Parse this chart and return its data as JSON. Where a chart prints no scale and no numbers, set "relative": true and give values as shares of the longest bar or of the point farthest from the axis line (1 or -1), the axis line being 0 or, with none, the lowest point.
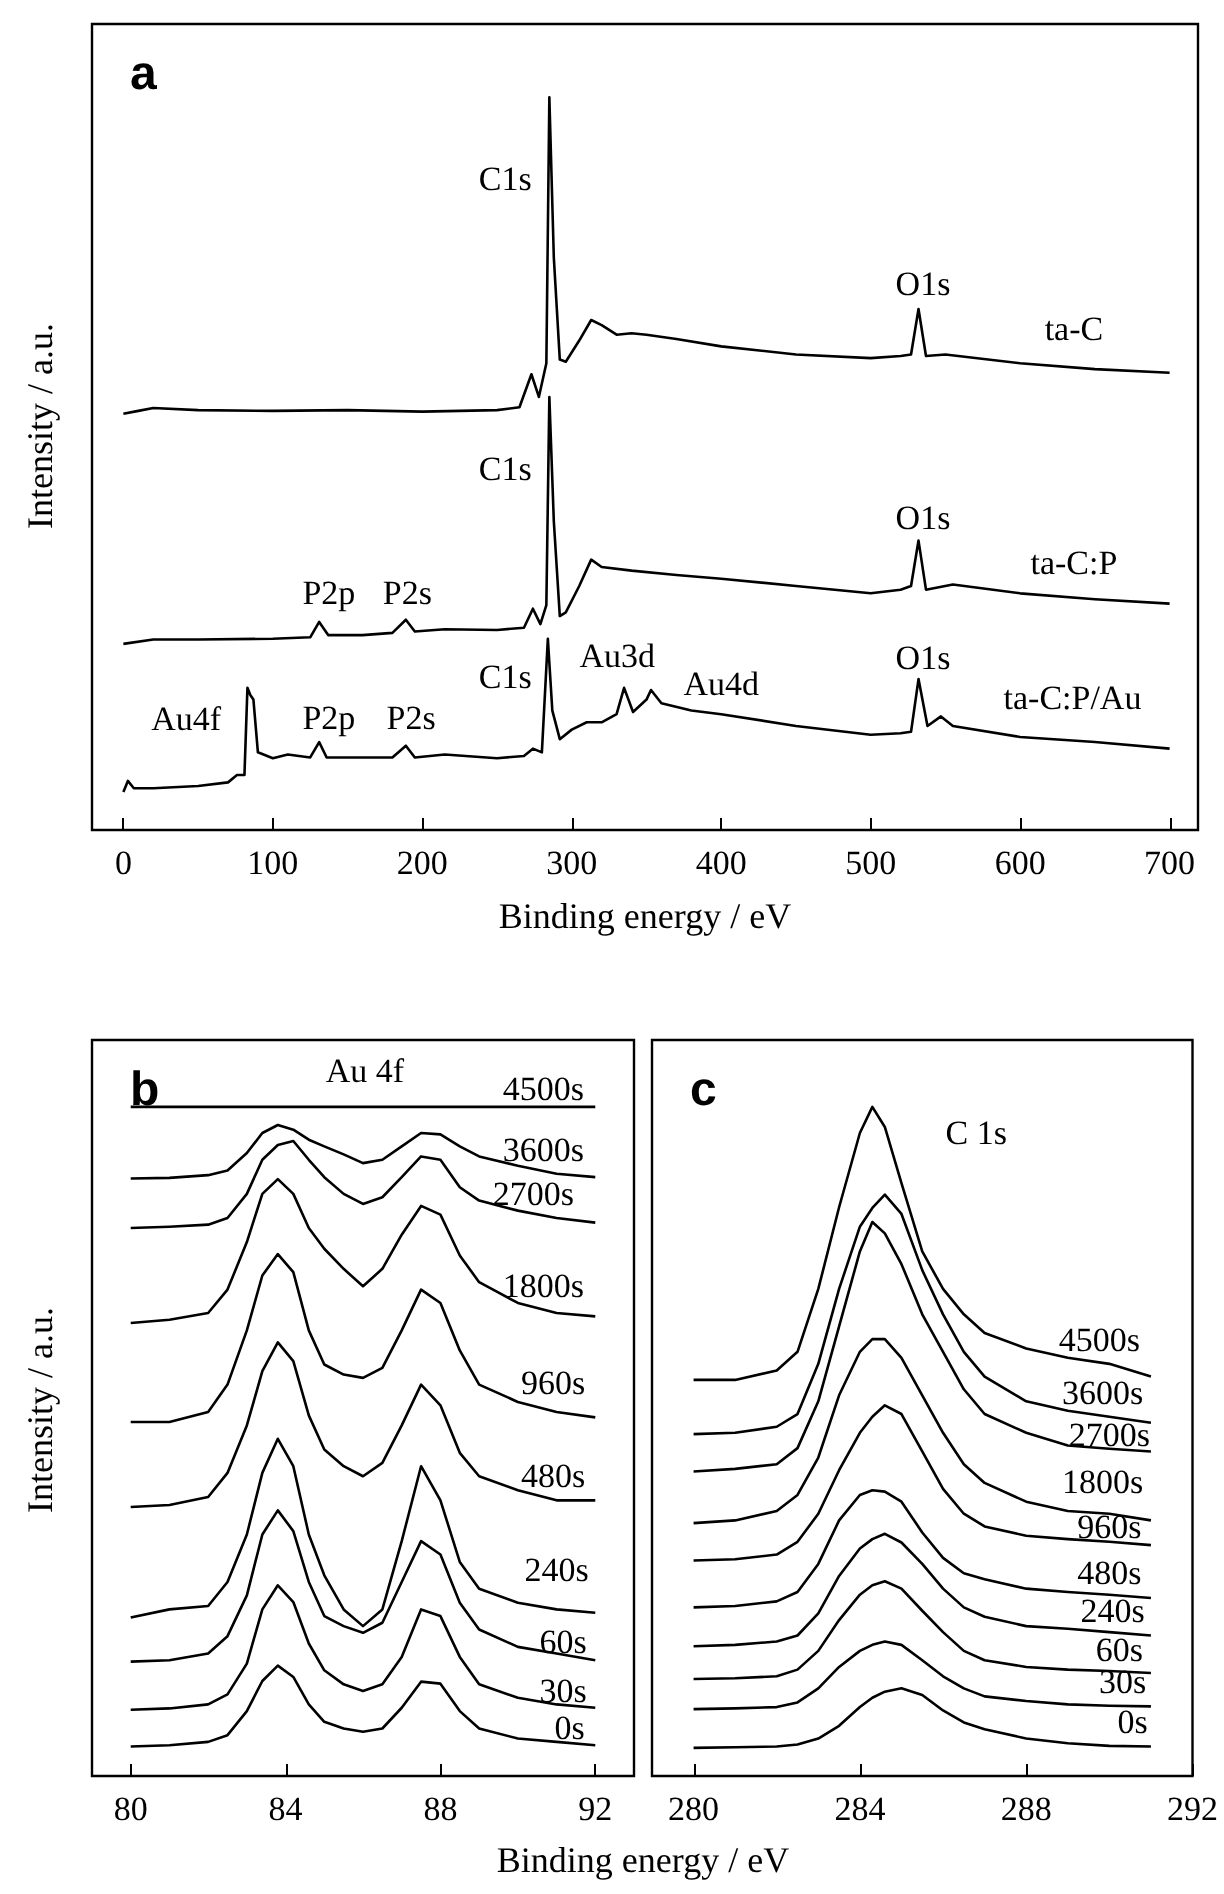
{
  "chart_data": [
    {
      "type": "line",
      "title": "a",
      "xlabel": "Binding energy / eV",
      "ylabel": "Intensity / a.u.",
      "relative": true,
      "marker": "none",
      "line_style": "solid",
      "xlim": [
        -21,
        719
      ],
      "xticks": [
        0,
        100,
        200,
        300,
        400,
        500,
        600,
        700
      ],
      "series": [
        {
          "color": "#000000",
          "x": [
            0,
            10,
            20,
            50,
            100,
            150,
            200,
            250,
            265,
            273,
            278,
            283,
            285,
            288,
            292,
            296,
            305,
            313,
            320,
            330,
            340,
            350,
            370,
            400,
            450,
            500,
            520,
            527,
            532,
            537,
            550,
            600,
            650,
            700
          ],
          "values": [
            0.568,
            0.572,
            0.576,
            0.573,
            0.572,
            0.573,
            0.571,
            0.573,
            0.577,
            0.622,
            0.591,
            0.637,
            1.0,
            0.781,
            0.642,
            0.639,
            0.668,
            0.696,
            0.689,
            0.676,
            0.678,
            0.676,
            0.67,
            0.66,
            0.649,
            0.644,
            0.647,
            0.649,
            0.711,
            0.647,
            0.649,
            0.637,
            0.629,
            0.624
          ]
        },
        {
          "color": "#000000",
          "x": [
            0,
            20,
            50,
            100,
            125,
            131,
            137,
            160,
            180,
            189,
            195,
            215,
            250,
            268,
            274,
            279,
            283,
            285,
            288,
            292,
            296,
            305,
            313,
            320,
            340,
            370,
            400,
            450,
            500,
            520,
            527,
            532,
            537,
            555,
            600,
            650,
            700
          ],
          "values": [
            0.254,
            0.26,
            0.26,
            0.261,
            0.263,
            0.284,
            0.266,
            0.266,
            0.269,
            0.287,
            0.271,
            0.274,
            0.273,
            0.276,
            0.302,
            0.281,
            0.307,
            0.591,
            0.421,
            0.292,
            0.297,
            0.333,
            0.369,
            0.359,
            0.354,
            0.348,
            0.343,
            0.333,
            0.323,
            0.328,
            0.333,
            0.395,
            0.328,
            0.335,
            0.323,
            0.315,
            0.309
          ]
        },
        {
          "color": "#000000",
          "x": [
            0,
            3,
            7,
            20,
            50,
            70,
            76,
            81,
            83,
            85,
            87,
            90,
            100,
            110,
            125,
            131,
            136,
            160,
            180,
            189,
            195,
            215,
            250,
            268,
            274,
            280,
            284,
            287,
            292,
            300,
            310,
            320,
            330,
            335,
            341,
            350,
            353,
            360,
            380,
            400,
            450,
            500,
            520,
            527,
            532,
            538,
            547,
            555,
            600,
            650,
            700
          ],
          "values": [
            0.052,
            0.067,
            0.057,
            0.057,
            0.06,
            0.065,
            0.075,
            0.075,
            0.194,
            0.184,
            0.178,
            0.106,
            0.098,
            0.103,
            0.099,
            0.12,
            0.099,
            0.099,
            0.099,
            0.115,
            0.099,
            0.103,
            0.098,
            0.101,
            0.111,
            0.106,
            0.261,
            0.163,
            0.124,
            0.137,
            0.147,
            0.147,
            0.158,
            0.194,
            0.161,
            0.178,
            0.191,
            0.173,
            0.163,
            0.158,
            0.142,
            0.13,
            0.132,
            0.134,
            0.206,
            0.142,
            0.155,
            0.142,
            0.127,
            0.12,
            0.111
          ]
        }
      ],
      "annotations": [
        "C1s",
        "O1s",
        "ta-C",
        "C1s",
        "O1s",
        "ta-C:P",
        "P2p",
        "P2s",
        "C1s",
        "Au3d",
        "Au4d",
        "O1s",
        "ta-C:P/Au",
        "Au4f",
        "P2p",
        "P2s"
      ]
    },
    {
      "type": "line",
      "title": "b",
      "xlabel": "Binding energy / eV",
      "ylabel": "Intensity / a.u.",
      "relative": true,
      "marker": "none",
      "line_style": "solid",
      "xlim": [
        79,
        93
      ],
      "xticks": [
        80,
        84,
        88,
        92
      ],
      "x": [
        80,
        81,
        82,
        82.5,
        83,
        83.4,
        83.8,
        84.2,
        84.6,
        85,
        85.5,
        86,
        86.5,
        87,
        87.5,
        88,
        88.5,
        89,
        90,
        91,
        92
      ],
      "series": [
        {
          "color": "#000000",
          "values": [
            0.044,
            0.046,
            0.051,
            0.061,
            0.097,
            0.142,
            0.165,
            0.148,
            0.107,
            0.081,
            0.071,
            0.066,
            0.071,
            0.102,
            0.141,
            0.138,
            0.097,
            0.071,
            0.056,
            0.051,
            0.046
          ]
        },
        {
          "color": "#000000",
          "values": [
            0.099,
            0.101,
            0.107,
            0.122,
            0.168,
            0.249,
            0.285,
            0.26,
            0.198,
            0.158,
            0.137,
            0.127,
            0.137,
            0.178,
            0.249,
            0.239,
            0.178,
            0.137,
            0.117,
            0.107,
            0.102
          ]
        },
        {
          "color": "#000000",
          "values": [
            0.171,
            0.173,
            0.183,
            0.209,
            0.27,
            0.361,
            0.397,
            0.366,
            0.29,
            0.239,
            0.224,
            0.214,
            0.229,
            0.29,
            0.351,
            0.331,
            0.259,
            0.219,
            0.193,
            0.183,
            0.173
          ]
        },
        {
          "color": "#000000",
          "values": [
            0.237,
            0.249,
            0.254,
            0.29,
            0.361,
            0.453,
            0.504,
            0.463,
            0.361,
            0.3,
            0.249,
            0.224,
            0.249,
            0.351,
            0.463,
            0.412,
            0.32,
            0.28,
            0.259,
            0.249,
            0.244
          ]
        },
        {
          "color": "#000000",
          "values": [
            0.402,
            0.405,
            0.417,
            0.453,
            0.524,
            0.605,
            0.648,
            0.62,
            0.539,
            0.488,
            0.463,
            0.448,
            0.468,
            0.524,
            0.585,
            0.554,
            0.483,
            0.448,
            0.427,
            0.412,
            0.412
          ]
        },
        {
          "color": "#000000",
          "values": [
            0.529,
            0.529,
            0.544,
            0.585,
            0.666,
            0.748,
            0.78,
            0.753,
            0.666,
            0.615,
            0.6,
            0.595,
            0.61,
            0.666,
            0.727,
            0.707,
            0.636,
            0.585,
            0.559,
            0.544,
            0.536
          ]
        },
        {
          "color": "#000000",
          "values": [
            0.677,
            0.682,
            0.692,
            0.727,
            0.798,
            0.87,
            0.892,
            0.87,
            0.819,
            0.788,
            0.758,
            0.732,
            0.758,
            0.809,
            0.852,
            0.839,
            0.778,
            0.738,
            0.707,
            0.692,
            0.687
          ]
        },
        {
          "color": "#000000",
          "values": [
            0.819,
            0.821,
            0.824,
            0.834,
            0.87,
            0.921,
            0.943,
            0.949,
            0.921,
            0.895,
            0.87,
            0.855,
            0.865,
            0.895,
            0.926,
            0.921,
            0.88,
            0.86,
            0.845,
            0.834,
            0.827
          ]
        },
        {
          "color": "#000000",
          "values": [
            0.893,
            0.894,
            0.898,
            0.905,
            0.931,
            0.961,
            0.973,
            0.966,
            0.951,
            0.941,
            0.929,
            0.916,
            0.921,
            0.941,
            0.961,
            0.959,
            0.941,
            0.926,
            0.912,
            0.9,
            0.895
          ]
        },
        {
          "color": "#000000",
          "values": [
            1,
            1,
            1,
            1,
            1,
            1,
            1,
            1,
            1,
            1,
            1,
            1,
            1,
            1,
            1,
            1,
            1,
            1,
            1,
            1,
            1
          ]
        }
      ],
      "annotations": [
        "Au 4f",
        "4500s",
        "3600s",
        "2700s",
        "1800s",
        "960s",
        "480s",
        "240s",
        "60s",
        "30s",
        "0s"
      ]
    },
    {
      "type": "line",
      "title": "c",
      "relative": true,
      "marker": "none",
      "line_style": "solid",
      "xlim": [
        279,
        292
      ],
      "xticks": [
        280,
        284,
        288,
        292
      ],
      "x": [
        280,
        281,
        282,
        282.5,
        283,
        283.5,
        284,
        284.3,
        284.6,
        285,
        285.5,
        286,
        286.5,
        287,
        288,
        289,
        290,
        291
      ],
      "series": [
        {
          "color": "#000000",
          "values": [
            0.042,
            0.043,
            0.044,
            0.047,
            0.056,
            0.075,
            0.103,
            0.117,
            0.126,
            0.131,
            0.121,
            0.098,
            0.08,
            0.07,
            0.056,
            0.049,
            0.045,
            0.044
          ]
        },
        {
          "color": "#000000",
          "values": [
            0.1,
            0.101,
            0.103,
            0.11,
            0.131,
            0.163,
            0.187,
            0.196,
            0.201,
            0.196,
            0.173,
            0.149,
            0.131,
            0.119,
            0.112,
            0.107,
            0.105,
            0.104
          ]
        },
        {
          "color": "#000000",
          "values": [
            0.145,
            0.146,
            0.149,
            0.159,
            0.187,
            0.233,
            0.271,
            0.285,
            0.291,
            0.28,
            0.247,
            0.215,
            0.187,
            0.173,
            0.163,
            0.159,
            0.157,
            0.154
          ]
        },
        {
          "color": "#000000",
          "values": [
            0.194,
            0.196,
            0.201,
            0.21,
            0.243,
            0.299,
            0.34,
            0.354,
            0.362,
            0.349,
            0.317,
            0.28,
            0.252,
            0.238,
            0.224,
            0.22,
            0.215,
            0.21
          ]
        },
        {
          "color": "#000000",
          "values": [
            0.252,
            0.254,
            0.261,
            0.275,
            0.317,
            0.382,
            0.42,
            0.427,
            0.425,
            0.41,
            0.364,
            0.326,
            0.303,
            0.294,
            0.28,
            0.275,
            0.271,
            0.266
          ]
        },
        {
          "color": "#000000",
          "values": [
            0.322,
            0.324,
            0.331,
            0.35,
            0.392,
            0.457,
            0.513,
            0.537,
            0.554,
            0.541,
            0.485,
            0.429,
            0.392,
            0.373,
            0.359,
            0.354,
            0.35,
            0.345
          ]
        },
        {
          "color": "#000000",
          "values": [
            0.378,
            0.382,
            0.396,
            0.42,
            0.476,
            0.569,
            0.634,
            0.653,
            0.653,
            0.625,
            0.569,
            0.513,
            0.466,
            0.438,
            0.41,
            0.396,
            0.392,
            0.382
          ]
        },
        {
          "color": "#000000",
          "values": [
            0.455,
            0.459,
            0.466,
            0.49,
            0.56,
            0.672,
            0.784,
            0.828,
            0.811,
            0.765,
            0.69,
            0.634,
            0.578,
            0.541,
            0.513,
            0.494,
            0.489,
            0.485
          ]
        },
        {
          "color": "#000000",
          "values": [
            0.511,
            0.513,
            0.522,
            0.541,
            0.616,
            0.728,
            0.821,
            0.849,
            0.869,
            0.84,
            0.756,
            0.69,
            0.634,
            0.597,
            0.56,
            0.546,
            0.537,
            0.528
          ]
        },
        {
          "color": "#000000",
          "values": [
            0.592,
            0.592,
            0.606,
            0.634,
            0.728,
            0.85,
            0.961,
            1.0,
            0.97,
            0.886,
            0.784,
            0.728,
            0.69,
            0.662,
            0.639,
            0.625,
            0.616,
            0.597
          ]
        }
      ],
      "annotations": [
        "C 1s",
        "4500s",
        "3600s",
        "2700s",
        "1800s",
        "960s",
        "480s",
        "240s",
        "60s",
        "30s",
        "0s"
      ]
    }
  ]
}
